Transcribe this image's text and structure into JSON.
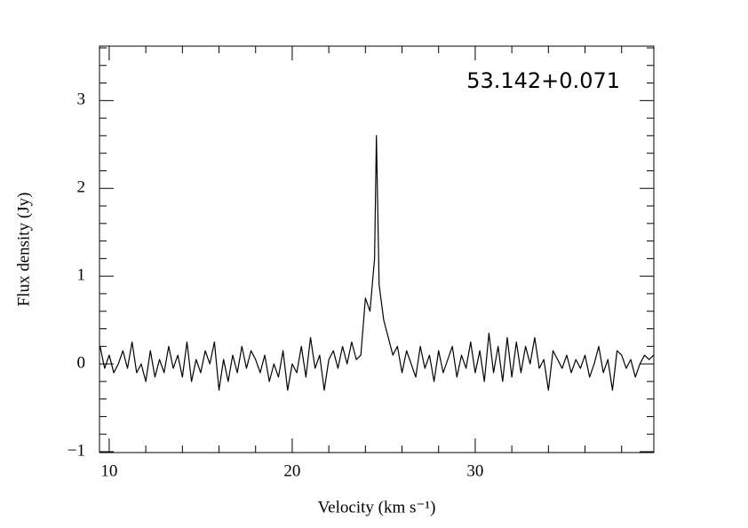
{
  "chart_data": {
    "type": "line",
    "xlabel": "Velocity (km s⁻¹)",
    "ylabel": "Flux density (Jy)",
    "annotation": "53.142+0.071",
    "xlim": [
      9.47,
      39.76
    ],
    "ylim": [
      -1.01,
      3.62
    ],
    "xticks": [
      10,
      20,
      30
    ],
    "yticks": [
      {
        "value": -1,
        "label": "−1"
      },
      0,
      1,
      2,
      3
    ],
    "xminor_ticks": [
      12,
      14,
      16,
      18,
      22,
      24,
      26,
      28,
      32,
      34,
      36,
      38
    ],
    "yminor_ticks": [
      -0.8,
      -0.6,
      -0.4,
      -0.2,
      0.2,
      0.4,
      0.6,
      0.8,
      1.2,
      1.4,
      1.6,
      1.8,
      2.2,
      2.4,
      2.6,
      2.8,
      3.2,
      3.4,
      3.6
    ],
    "series": [
      {
        "color": "#000000",
        "x": [
          9.5,
          9.75,
          10,
          10.25,
          10.5,
          10.75,
          11,
          11.25,
          11.5,
          11.75,
          12,
          12.25,
          12.5,
          12.75,
          13,
          13.25,
          13.5,
          13.75,
          14,
          14.25,
          14.5,
          14.75,
          15,
          15.25,
          15.5,
          15.75,
          16,
          16.25,
          16.5,
          16.75,
          17,
          17.25,
          17.5,
          17.75,
          18,
          18.25,
          18.5,
          18.75,
          19,
          19.25,
          19.5,
          19.75,
          20,
          20.25,
          20.5,
          20.75,
          21,
          21.25,
          21.5,
          21.75,
          22,
          22.25,
          22.5,
          22.75,
          23,
          23.25,
          23.5,
          23.75,
          24,
          24.25,
          24.5,
          24.6,
          24.75,
          25,
          25.25,
          25.5,
          25.75,
          26,
          26.25,
          26.5,
          26.75,
          27,
          27.25,
          27.5,
          27.75,
          28,
          28.25,
          28.5,
          28.75,
          29,
          29.25,
          29.5,
          29.75,
          30,
          30.25,
          30.5,
          30.75,
          31,
          31.25,
          31.5,
          31.75,
          32,
          32.25,
          32.5,
          32.75,
          33,
          33.25,
          33.5,
          33.75,
          34,
          34.25,
          34.5,
          34.75,
          35,
          35.25,
          35.5,
          35.75,
          36,
          36.25,
          36.5,
          36.75,
          37,
          37.25,
          37.5,
          37.75,
          38,
          38.25,
          38.5,
          38.75,
          39,
          39.25,
          39.5,
          39.75
        ],
        "values": [
          0.2,
          -0.05,
          0.1,
          -0.1,
          0.0,
          0.15,
          -0.05,
          0.25,
          -0.1,
          0.0,
          -0.2,
          0.15,
          -0.15,
          0.05,
          -0.1,
          0.2,
          -0.05,
          0.1,
          -0.15,
          0.25,
          -0.2,
          0.05,
          -0.1,
          0.15,
          0.0,
          0.25,
          -0.3,
          0.05,
          -0.2,
          0.1,
          -0.1,
          0.2,
          -0.05,
          0.15,
          0.05,
          -0.1,
          0.1,
          -0.2,
          0.0,
          -0.15,
          0.15,
          -0.3,
          0.0,
          -0.1,
          0.2,
          -0.15,
          0.3,
          -0.05,
          0.1,
          -0.3,
          0.05,
          0.15,
          -0.05,
          0.2,
          0.0,
          0.25,
          0.05,
          0.1,
          0.75,
          0.6,
          1.2,
          2.6,
          0.9,
          0.5,
          0.3,
          0.1,
          0.2,
          -0.1,
          0.15,
          0.0,
          -0.15,
          0.2,
          -0.05,
          0.1,
          -0.2,
          0.15,
          -0.1,
          0.05,
          0.2,
          -0.15,
          0.1,
          -0.05,
          0.25,
          -0.1,
          0.15,
          -0.2,
          0.35,
          -0.1,
          0.2,
          -0.2,
          0.3,
          -0.15,
          0.25,
          -0.1,
          0.2,
          0.0,
          0.3,
          -0.05,
          0.05,
          -0.3,
          0.15,
          0.05,
          -0.05,
          0.1,
          -0.1,
          0.05,
          -0.05,
          0.1,
          -0.15,
          0.0,
          0.2,
          -0.1,
          0.05,
          -0.3,
          0.15,
          0.1,
          -0.05,
          0.05,
          -0.15,
          0.0,
          0.1,
          0.05,
          0.1
        ]
      }
    ]
  }
}
